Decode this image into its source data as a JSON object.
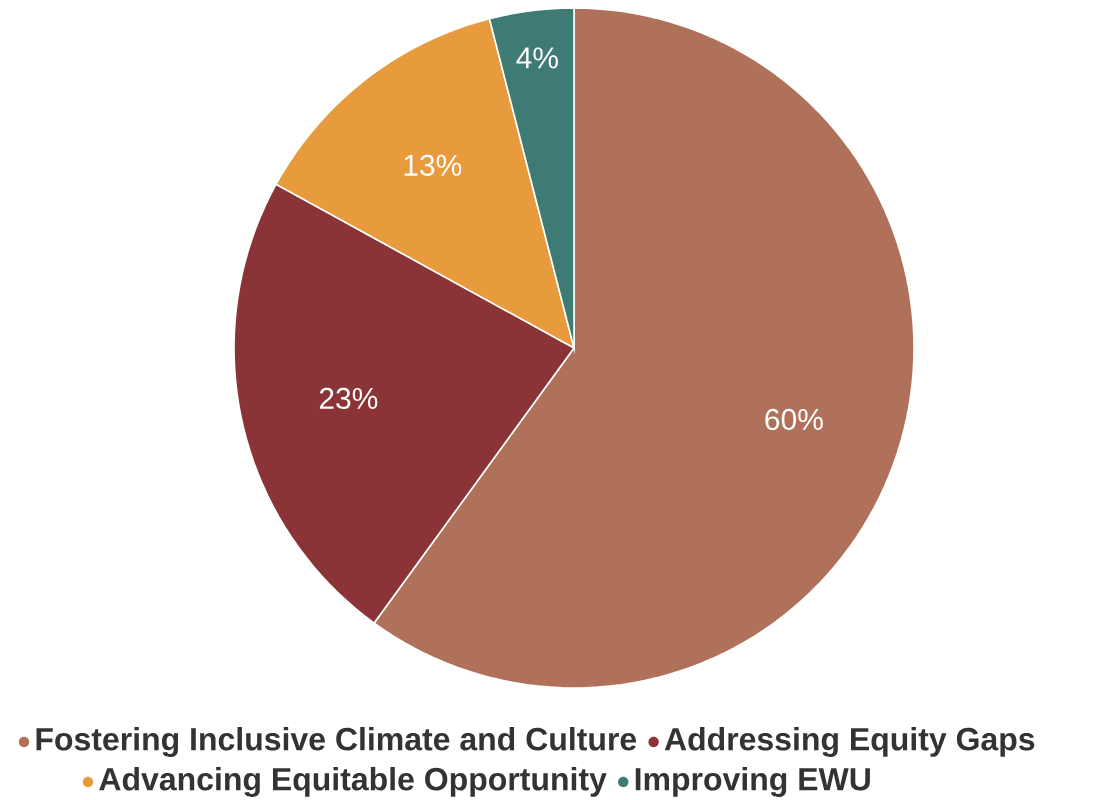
{
  "chart_data": {
    "type": "pie",
    "categories": [
      "Fostering Inclusive Climate and Culture",
      "Addressing Equity Gaps",
      "Advancing Equitable Opportunity",
      "Improving EWU"
    ],
    "values": [
      60,
      23,
      13,
      4
    ],
    "colors": [
      "#b0715b",
      "#8b3437",
      "#e79b3d",
      "#3e7b74"
    ],
    "value_labels": [
      "60%",
      "23%",
      "13%",
      "4%"
    ],
    "legend": "bottom"
  }
}
